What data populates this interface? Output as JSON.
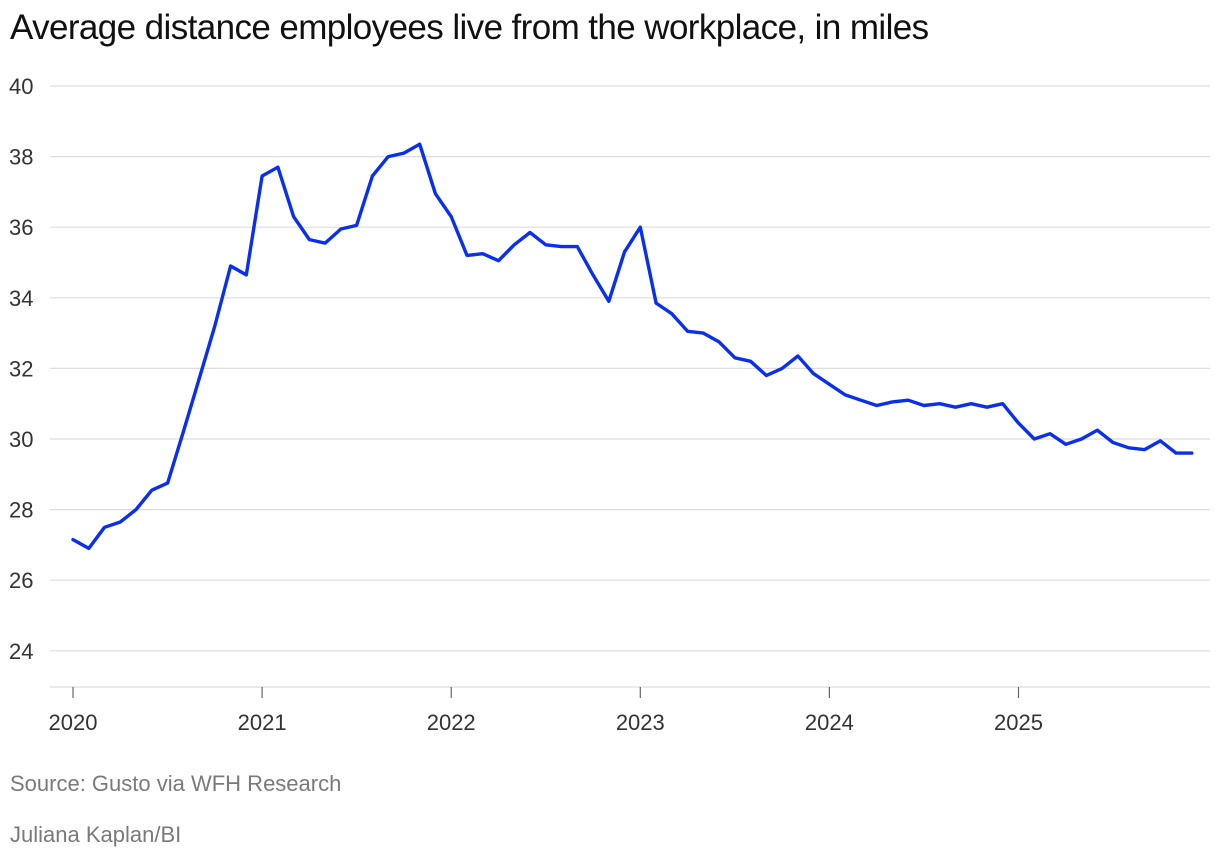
{
  "header": {
    "title": "Average distance employees live from the workplace, in miles"
  },
  "footer": {
    "source": "Source: Gusto via WFH Research",
    "credit": "Juliana Kaplan/BI"
  },
  "colors": {
    "line": "#0a2ff0",
    "grid": "#dddddd",
    "axis_text": "#333333",
    "muted_text": "#7a7a7a"
  },
  "chart_data": {
    "type": "line",
    "title": "Average distance employees live from the workplace, in miles",
    "xlabel": "",
    "ylabel": "",
    "ylim": [
      23,
      40
    ],
    "yticks": [
      24,
      26,
      28,
      30,
      32,
      34,
      36,
      38,
      40
    ],
    "xlim": [
      "2020-01",
      "2025-12"
    ],
    "xticks": [
      "2020",
      "2021",
      "2022",
      "2023",
      "2024",
      "2025"
    ],
    "grid": true,
    "legend": "none",
    "x": [
      "2020-01",
      "2020-02",
      "2020-03",
      "2020-04",
      "2020-05",
      "2020-06",
      "2020-07",
      "2020-08",
      "2020-09",
      "2020-10",
      "2020-11",
      "2020-12",
      "2021-01",
      "2021-02",
      "2021-03",
      "2021-04",
      "2021-05",
      "2021-06",
      "2021-07",
      "2021-08",
      "2021-09",
      "2021-10",
      "2021-11",
      "2021-12",
      "2022-01",
      "2022-02",
      "2022-03",
      "2022-04",
      "2022-05",
      "2022-06",
      "2022-07",
      "2022-08",
      "2022-09",
      "2022-10",
      "2022-11",
      "2022-12",
      "2023-01",
      "2023-02",
      "2023-03",
      "2023-04",
      "2023-05",
      "2023-06",
      "2023-07",
      "2023-08",
      "2023-09",
      "2023-10",
      "2023-11",
      "2023-12",
      "2024-01",
      "2024-02",
      "2024-03",
      "2024-04",
      "2024-05",
      "2024-06",
      "2024-07",
      "2024-08",
      "2024-09",
      "2024-10",
      "2024-11",
      "2024-12",
      "2025-01",
      "2025-02",
      "2025-03",
      "2025-04",
      "2025-05",
      "2025-06",
      "2025-07",
      "2025-08",
      "2025-09",
      "2025-10",
      "2025-11",
      "2025-12"
    ],
    "series": [
      {
        "values": [
          27.15,
          26.9,
          27.5,
          27.65,
          28.0,
          28.55,
          28.75,
          30.2,
          31.7,
          33.2,
          34.9,
          34.65,
          37.45,
          37.7,
          36.3,
          35.65,
          35.55,
          35.95,
          36.05,
          37.45,
          38.0,
          38.1,
          38.35,
          36.95,
          36.3,
          35.2,
          35.25,
          35.05,
          35.5,
          35.85,
          35.5,
          35.45,
          35.45,
          34.65,
          33.9,
          35.3,
          36.0,
          33.85,
          33.55,
          33.05,
          33.0,
          32.75,
          32.3,
          32.2,
          31.8,
          32.0,
          32.35,
          31.85,
          31.55,
          31.25,
          31.1,
          30.95,
          31.05,
          31.1,
          30.95,
          31.0,
          30.9,
          31.0,
          30.9,
          31.0,
          30.45,
          30.0,
          30.15,
          29.85,
          30.0,
          30.25,
          29.9,
          29.75,
          29.7,
          29.95,
          29.6,
          29.6
        ]
      }
    ]
  }
}
